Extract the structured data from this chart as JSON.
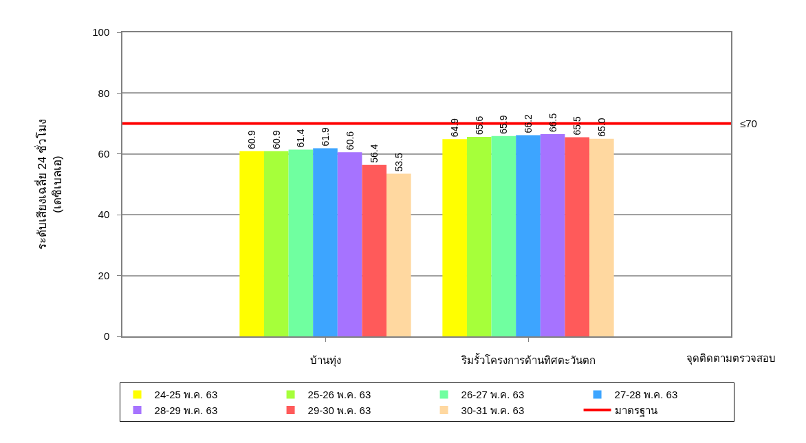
{
  "chart_data": {
    "type": "bar",
    "xlabel": "จุดติดตามตรวจสอบ",
    "ylabel": "ระดับเสียงเฉลี่ย 24 ชั่วโมง\n(เดซิเบลเอ)",
    "categories": [
      "บ้านทุ่ง",
      "ริมรั้วโครงการด้านทิศตะวันตก"
    ],
    "series": [
      {
        "name": "24-25 พ.ค. 63",
        "color": "#ffff00",
        "values": [
          60.9,
          64.9
        ],
        "value_labels": [
          "60.9",
          "64.9"
        ]
      },
      {
        "name": "25-26 พ.ค. 63",
        "color": "#a6ff3a",
        "values": [
          60.9,
          65.6
        ],
        "value_labels": [
          "60.9",
          "65.6"
        ]
      },
      {
        "name": "26-27 พ.ค. 63",
        "color": "#70ffa0",
        "values": [
          61.4,
          65.9
        ],
        "value_labels": [
          "61.4",
          "65.9"
        ]
      },
      {
        "name": "27-28 พ.ค. 63",
        "color": "#3da5ff",
        "values": [
          61.9,
          66.2
        ],
        "value_labels": [
          "61.9",
          "66.2"
        ]
      },
      {
        "name": "28-29 พ.ค. 63",
        "color": "#a673ff",
        "values": [
          60.6,
          66.5
        ],
        "value_labels": [
          "60.6",
          "66.5"
        ]
      },
      {
        "name": "29-30 พ.ค. 63",
        "color": "#ff5a5a",
        "values": [
          56.4,
          65.5
        ],
        "value_labels": [
          "56.4",
          "65.5"
        ]
      },
      {
        "name": "30-31 พ.ค. 63",
        "color": "#ffd8a0",
        "values": [
          53.5,
          65.0
        ],
        "value_labels": [
          "53.5",
          "65.0"
        ]
      }
    ],
    "ylim": [
      0,
      100
    ],
    "yticks": [
      0,
      20,
      40,
      60,
      80,
      100
    ],
    "ref_lines": [
      {
        "axis": "y",
        "value": 70,
        "label": "มาตรฐาน",
        "color": "#ff0000"
      }
    ],
    "annotations": [
      "≤70"
    ],
    "grid": "y",
    "legend": "bottom"
  }
}
